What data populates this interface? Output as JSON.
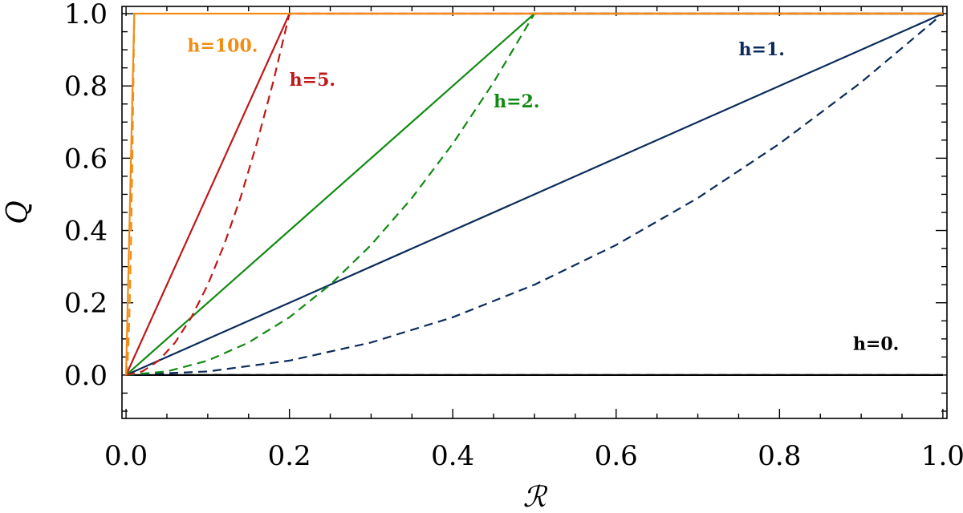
{
  "chart_data": {
    "type": "line",
    "xlabel": "ℛ",
    "ylabel": "Q",
    "xlim": [
      -0.005,
      1.005
    ],
    "ylim": [
      -0.12,
      1.02
    ],
    "x_ticks": [
      0.0,
      0.2,
      0.4,
      0.6,
      0.8,
      1.0
    ],
    "x_tick_labels": [
      "0.0",
      "0.2",
      "0.4",
      "0.6",
      "0.8",
      "1.0"
    ],
    "y_ticks": [
      0.0,
      0.2,
      0.4,
      0.6,
      0.8,
      1.0
    ],
    "y_tick_labels": [
      "0.0",
      "0.2",
      "0.4",
      "0.6",
      "0.8",
      "1.0"
    ],
    "grid": false,
    "legend": "none",
    "series": [
      {
        "name": "h=0.",
        "color": "#000000",
        "solid": {
          "x": [
            0,
            1
          ],
          "y": [
            0,
            0
          ]
        },
        "dashed": {
          "x": [
            0,
            1
          ],
          "y": [
            0,
            0
          ]
        },
        "label": {
          "text": "h=0.",
          "x": 0.89,
          "y": 0.07
        }
      },
      {
        "name": "h=1.",
        "color": "#0b2b5c",
        "solid": {
          "x": [
            0,
            1
          ],
          "y": [
            0,
            1
          ]
        },
        "dashed": {
          "x": [
            0,
            0.1,
            0.2,
            0.3,
            0.4,
            0.5,
            0.6,
            0.7,
            0.8,
            0.9,
            1.0
          ],
          "y": [
            0,
            0.01,
            0.04,
            0.09,
            0.16,
            0.25,
            0.36,
            0.49,
            0.64,
            0.81,
            1.0
          ]
        },
        "label": {
          "text": "h=1.",
          "x": 0.75,
          "y": 0.885
        }
      },
      {
        "name": "h=2.",
        "color": "#128a12",
        "solid": {
          "x": [
            0,
            0.5,
            1.0
          ],
          "y": [
            0,
            1,
            1
          ]
        },
        "dashed": {
          "x": [
            0,
            0.05,
            0.1,
            0.15,
            0.2,
            0.25,
            0.3,
            0.35,
            0.4,
            0.45,
            0.5,
            1.0
          ],
          "y": [
            0,
            0.01,
            0.04,
            0.09,
            0.16,
            0.25,
            0.36,
            0.49,
            0.64,
            0.81,
            1.0,
            1.0
          ]
        },
        "label": {
          "text": "h=2.",
          "x": 0.45,
          "y": 0.74
        }
      },
      {
        "name": "h=5.",
        "color": "#c01818",
        "solid": {
          "x": [
            0,
            0.2,
            1.0
          ],
          "y": [
            0,
            1,
            1
          ]
        },
        "dashed": {
          "x": [
            0,
            0.02,
            0.04,
            0.06,
            0.08,
            0.1,
            0.12,
            0.14,
            0.16,
            0.18,
            0.2,
            1.0
          ],
          "y": [
            0,
            0.01,
            0.04,
            0.09,
            0.16,
            0.25,
            0.36,
            0.49,
            0.64,
            0.81,
            1.0,
            1.0
          ]
        },
        "label": {
          "text": "h=5.",
          "x": 0.2,
          "y": 0.8
        }
      },
      {
        "name": "h=100.",
        "color": "#f28c12",
        "solid": {
          "x": [
            0,
            0.01,
            1.0
          ],
          "y": [
            0,
            1,
            1
          ]
        },
        "dashed": {
          "x": [
            0,
            0.002,
            0.004,
            0.006,
            0.008,
            0.01
          ],
          "y": [
            0,
            0.04,
            0.16,
            0.36,
            0.64,
            1.0
          ]
        },
        "label": {
          "text": "h=100.",
          "x": 0.075,
          "y": 0.895
        }
      }
    ]
  }
}
